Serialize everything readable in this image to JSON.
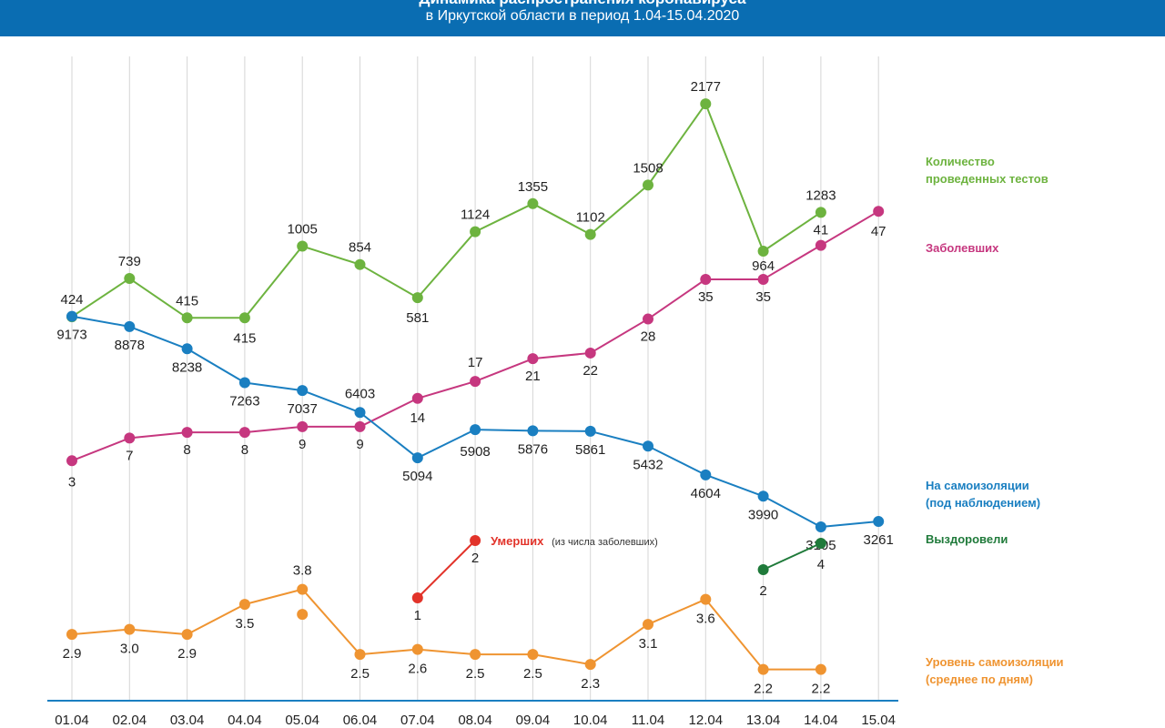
{
  "header": {
    "title_line1": "Динамика распространения коронавируса",
    "title_line2": "в Иркутской области в период  1.04-15.04.2020"
  },
  "chart_data": {
    "type": "line",
    "categories": [
      "01.04",
      "02.04",
      "03.04",
      "04.04",
      "05.04",
      "06.04",
      "07.04",
      "08.04",
      "09.04",
      "10.04",
      "11.04",
      "12.04",
      "13.04",
      "14.04",
      "15.04"
    ],
    "series": [
      {
        "key": "tests",
        "name": "Количество проведенных тестов",
        "color": "#6db33f",
        "values": [
          424,
          739,
          415,
          415,
          1005,
          854,
          581,
          1124,
          1355,
          1102,
          1508,
          2177,
          964,
          1283,
          null
        ],
        "labels": [
          "424",
          "739",
          "415",
          "415",
          "1005",
          "854",
          "581",
          "1124",
          "1355",
          "1102",
          "1508",
          "2177",
          "964",
          "1283",
          null
        ]
      },
      {
        "key": "sick",
        "name": "Заболевших",
        "color": "#c6377f",
        "values": [
          3,
          7,
          8,
          8,
          9,
          9,
          14,
          17,
          21,
          22,
          28,
          35,
          35,
          41,
          47
        ],
        "labels": [
          "3",
          "7",
          "8",
          "8",
          "9",
          "9",
          "14",
          "17",
          "21",
          "22",
          "28",
          "35",
          "35",
          "41",
          "47"
        ]
      },
      {
        "key": "isolation",
        "name": "На самоизоляции (под наблюдением)",
        "color": "#1a7fc1",
        "values": [
          9173,
          8878,
          8238,
          7263,
          7037,
          6403,
          5094,
          5908,
          5876,
          5861,
          5432,
          4604,
          3990,
          3105,
          3261
        ],
        "labels": [
          "9173",
          "8878",
          "8238",
          "7263",
          "7037",
          "6403",
          "5094",
          "5908",
          "5876",
          "5861",
          "5432",
          "4604",
          "3990",
          "3105",
          "3261"
        ]
      },
      {
        "key": "deaths",
        "name": "Умерших",
        "name_note": "(из числа заболевших)",
        "color": "#e2332a",
        "values": [
          null,
          null,
          null,
          null,
          null,
          null,
          1,
          2,
          null,
          null,
          null,
          null,
          null,
          null,
          null
        ],
        "labels": [
          null,
          null,
          null,
          null,
          null,
          null,
          "1",
          "2",
          null,
          null,
          null,
          null,
          null,
          null,
          null
        ]
      },
      {
        "key": "recovered",
        "name": "Выздоровели",
        "color": "#1f7a3a",
        "values": [
          null,
          null,
          null,
          null,
          null,
          null,
          null,
          null,
          null,
          null,
          null,
          null,
          2,
          4,
          null
        ],
        "labels": [
          null,
          null,
          null,
          null,
          null,
          null,
          null,
          null,
          null,
          null,
          null,
          null,
          "2",
          "4",
          null
        ]
      },
      {
        "key": "level",
        "name": "Уровень самоизоляции (среднее по дням)",
        "color": "#ef9431",
        "values": [
          2.9,
          3.0,
          2.9,
          3.5,
          3.8,
          2.5,
          2.6,
          2.5,
          2.5,
          2.3,
          3.1,
          3.6,
          2.2,
          2.2,
          null
        ],
        "labels": [
          "2.9",
          "3.0",
          "2.9",
          "3.5",
          "3.8",
          "2.5",
          "2.6",
          "2.5",
          "2.5",
          "2.3",
          "3.1",
          "3.6",
          "2.2",
          "2.2",
          null
        ],
        "extra_marker": {
          "category": "05.04",
          "value": 3.3
        }
      }
    ],
    "grid": true
  },
  "legend": {
    "tests": [
      "Количество",
      "проведенных тестов"
    ],
    "sick": [
      "Заболевших"
    ],
    "isolation": [
      "На самоизоляции",
      "(под наблюдением)"
    ],
    "recovered": [
      "Выздоровели"
    ],
    "level": [
      "Уровень самоизоляции",
      "(среднее по дням)"
    ]
  }
}
